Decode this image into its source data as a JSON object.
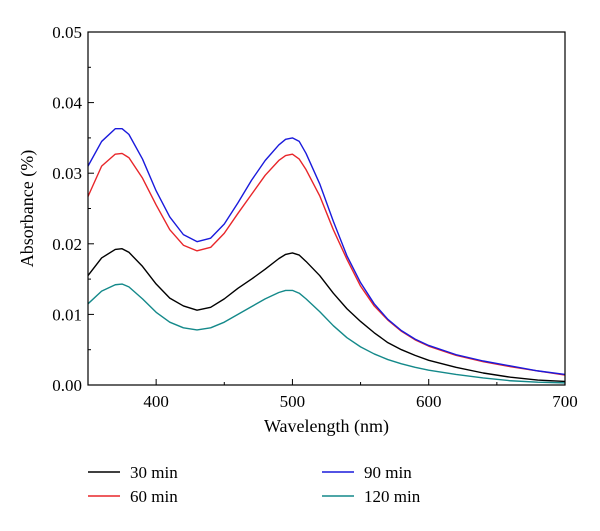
{
  "chart_data": {
    "type": "line",
    "title": "",
    "xlabel": "Wavelength (nm)",
    "ylabel": "Absorbance (%)",
    "xlim": [
      350,
      700
    ],
    "ylim": [
      0.0,
      0.05
    ],
    "x_ticks": [
      400,
      500,
      600,
      700
    ],
    "y_ticks": [
      0.0,
      0.01,
      0.02,
      0.03,
      0.04,
      0.05
    ],
    "x_tick_labels": [
      "400",
      "500",
      "600",
      "700"
    ],
    "y_tick_labels": [
      "0.00",
      "0.01",
      "0.02",
      "0.03",
      "0.04",
      "0.05"
    ],
    "grid": false,
    "legend_position": "below",
    "x": [
      350,
      360,
      370,
      375,
      380,
      390,
      400,
      410,
      420,
      430,
      440,
      450,
      460,
      470,
      480,
      490,
      495,
      500,
      505,
      510,
      520,
      530,
      540,
      550,
      560,
      570,
      580,
      590,
      600,
      620,
      640,
      660,
      680,
      700
    ],
    "series": [
      {
        "name": "30 min",
        "color": "#000000",
        "values": [
          0.0155,
          0.018,
          0.0192,
          0.0193,
          0.0188,
          0.0168,
          0.0143,
          0.0123,
          0.0112,
          0.0106,
          0.011,
          0.0122,
          0.0137,
          0.015,
          0.0164,
          0.0179,
          0.0185,
          0.0187,
          0.0184,
          0.0175,
          0.0155,
          0.013,
          0.0108,
          0.009,
          0.0074,
          0.006,
          0.005,
          0.0042,
          0.0035,
          0.0025,
          0.0017,
          0.0011,
          0.0007,
          0.0005
        ]
      },
      {
        "name": "60 min",
        "color": "#e8262a",
        "values": [
          0.0267,
          0.031,
          0.0327,
          0.0328,
          0.0322,
          0.0293,
          0.0255,
          0.022,
          0.0198,
          0.019,
          0.0195,
          0.0215,
          0.0243,
          0.027,
          0.0297,
          0.0318,
          0.0325,
          0.0327,
          0.032,
          0.0305,
          0.0268,
          0.022,
          0.0178,
          0.014,
          0.0112,
          0.0092,
          0.0076,
          0.0064,
          0.0055,
          0.0042,
          0.0033,
          0.0026,
          0.002,
          0.0014
        ]
      },
      {
        "name": "90 min",
        "color": "#1a1adc",
        "values": [
          0.031,
          0.0345,
          0.0363,
          0.0363,
          0.0355,
          0.032,
          0.0275,
          0.0238,
          0.0213,
          0.0203,
          0.0208,
          0.0228,
          0.0258,
          0.029,
          0.0318,
          0.034,
          0.0348,
          0.035,
          0.0345,
          0.0328,
          0.0285,
          0.0232,
          0.0183,
          0.0145,
          0.0115,
          0.0093,
          0.0077,
          0.0065,
          0.0056,
          0.0043,
          0.0034,
          0.0027,
          0.002,
          0.0015
        ]
      },
      {
        "name": "120 min",
        "color": "#14898a",
        "values": [
          0.0115,
          0.0133,
          0.0142,
          0.0143,
          0.0139,
          0.0122,
          0.0103,
          0.0089,
          0.0081,
          0.0078,
          0.0081,
          0.0089,
          0.01,
          0.0111,
          0.0122,
          0.0131,
          0.0134,
          0.0134,
          0.013,
          0.0122,
          0.0104,
          0.0084,
          0.0067,
          0.0054,
          0.0044,
          0.0036,
          0.003,
          0.0025,
          0.0021,
          0.0015,
          0.001,
          0.0006,
          0.0004,
          0.0003
        ]
      }
    ]
  }
}
